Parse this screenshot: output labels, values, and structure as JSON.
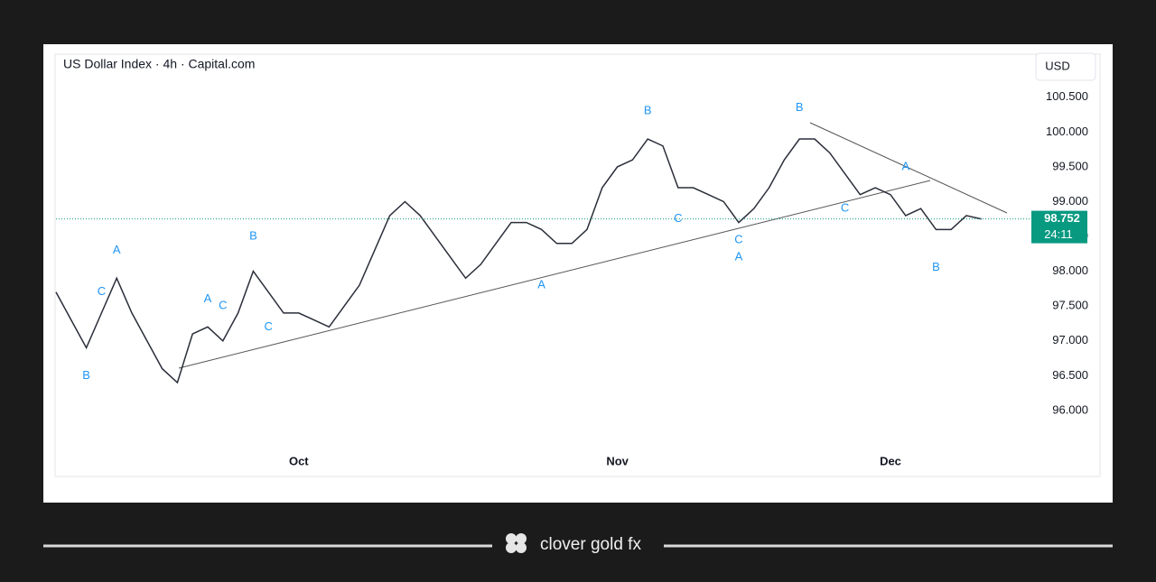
{
  "chart_data": {
    "type": "line",
    "title": "US Dollar Index · 4h · Capital.com",
    "currency": "USD",
    "categories": [
      null,
      null,
      null,
      null,
      null,
      null,
      null,
      null,
      null,
      null,
      null,
      null,
      null,
      null,
      null,
      null,
      "Oct",
      null,
      null,
      null,
      null,
      null,
      null,
      null,
      null,
      null,
      null,
      null,
      null,
      null,
      null,
      null,
      null,
      null,
      null,
      null,
      null,
      "Nov",
      null,
      null,
      null,
      null,
      null,
      null,
      null,
      null,
      null,
      null,
      null,
      null,
      null,
      null,
      null,
      null,
      null,
      "Dec",
      null,
      null,
      null,
      null,
      null,
      null
    ],
    "values": [
      97.7,
      97.3,
      96.9,
      97.4,
      97.9,
      97.4,
      97.0,
      96.6,
      96.4,
      97.1,
      97.2,
      97.0,
      97.4,
      98.0,
      97.7,
      97.4,
      97.4,
      97.3,
      97.2,
      97.5,
      97.8,
      98.3,
      98.8,
      99.0,
      98.8,
      98.5,
      98.2,
      97.9,
      98.1,
      98.4,
      98.7,
      98.7,
      98.6,
      98.4,
      98.4,
      98.6,
      99.2,
      99.5,
      99.6,
      99.9,
      99.8,
      99.2,
      99.2,
      99.1,
      99.0,
      98.7,
      98.9,
      99.2,
      99.6,
      99.9,
      99.9,
      99.7,
      99.4,
      99.1,
      99.2,
      99.1,
      98.8,
      98.9,
      98.6,
      98.6,
      98.8,
      98.75
    ],
    "color": "#2a2e39",
    "ylim": [
      95.48,
      100.73
    ],
    "yticks": [
      {
        "value": 96,
        "label": "96.000"
      },
      {
        "value": 96.5,
        "label": "96.500"
      },
      {
        "value": 97,
        "label": "97.000"
      },
      {
        "value": 97.5,
        "label": "97.500"
      },
      {
        "value": 98,
        "label": "98.000"
      },
      {
        "value": 98.5,
        "label": "98.500"
      },
      {
        "value": 99,
        "label": "99.000"
      },
      {
        "value": 99.5,
        "label": "99.500"
      },
      {
        "value": 100,
        "label": "100.000"
      },
      {
        "value": 100.5,
        "label": "100.500"
      }
    ],
    "last_price": {
      "value": 98.752,
      "label": "98.752",
      "color": "#089981"
    },
    "countdown": "24:11",
    "annotations": [
      {
        "text": "B",
        "x": 2,
        "y": 96.5
      },
      {
        "text": "C",
        "x": 3,
        "y": 97.7
      },
      {
        "text": "A",
        "x": 4,
        "y": 98.3
      },
      {
        "text": "A",
        "x": 10,
        "y": 97.6
      },
      {
        "text": "C",
        "x": 11,
        "y": 97.5
      },
      {
        "text": "B",
        "x": 13,
        "y": 98.5
      },
      {
        "text": "C",
        "x": 14,
        "y": 97.2
      },
      {
        "text": "A",
        "x": 32,
        "y": 97.8
      },
      {
        "text": "B",
        "x": 39,
        "y": 100.3
      },
      {
        "text": "C",
        "x": 41,
        "y": 98.75
      },
      {
        "text": "C",
        "x": 45,
        "y": 98.45
      },
      {
        "text": "A",
        "x": 45,
        "y": 98.2
      },
      {
        "text": "B",
        "x": 49,
        "y": 100.35
      },
      {
        "text": "C",
        "x": 52,
        "y": 98.9
      },
      {
        "text": "A",
        "x": 56,
        "y": 99.5
      },
      {
        "text": "B",
        "x": 58,
        "y": 98.05
      }
    ],
    "annotation_color": "#2196f3"
  },
  "footer": {
    "brand": "clover gold fx"
  }
}
